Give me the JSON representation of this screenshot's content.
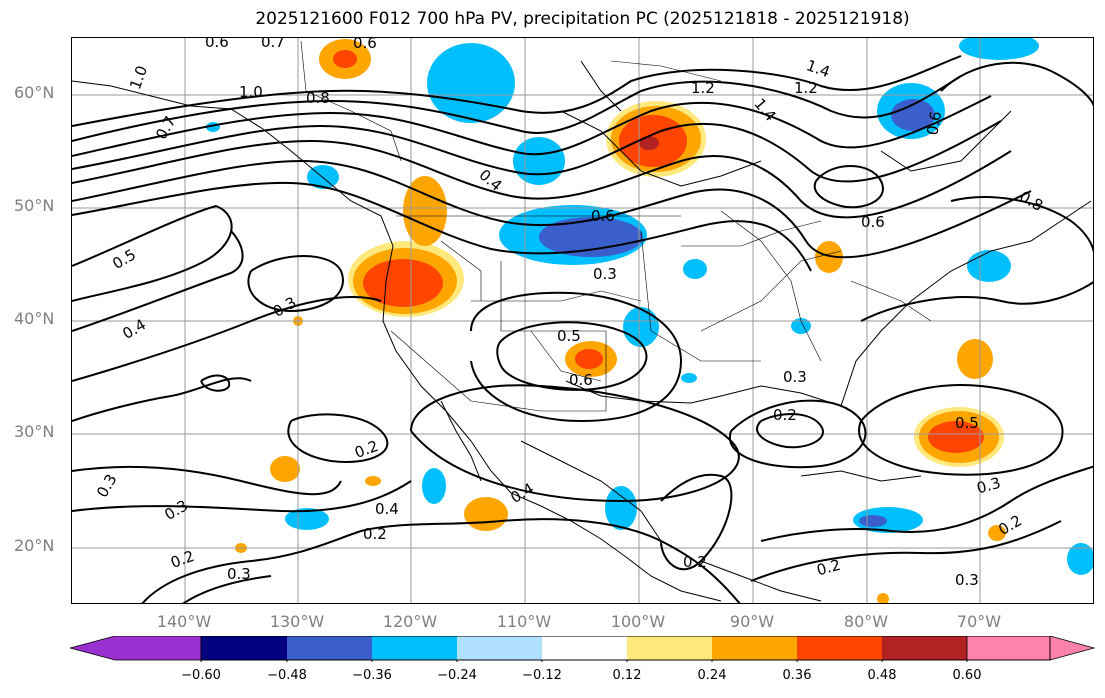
{
  "title": "2025121600 F012 700 hPa PV, precipitation PC (2025121818 - 2025121918)",
  "lat_labels": [
    "60°N",
    "50°N",
    "40°N",
    "30°N",
    "20°N"
  ],
  "lon_labels": [
    "140°W",
    "130°W",
    "120°W",
    "110°W",
    "100°W",
    "90°W",
    "80°W",
    "70°W"
  ],
  "colorbar": {
    "ticks": [
      "−0.60",
      "−0.48",
      "−0.36",
      "−0.24",
      "−0.12",
      "0.12",
      "0.24",
      "0.36",
      "0.48",
      "0.60"
    ],
    "colors": [
      "#9b30d0",
      "#000080",
      "#3a5fcd",
      "#00bfff",
      "#b0e2ff",
      "#ffffff",
      "#ffe87c",
      "#ffa500",
      "#ff4500",
      "#b22222",
      "#ff82ab"
    ]
  },
  "contour_labels": [
    {
      "id": "c1",
      "text": "0.6"
    },
    {
      "id": "c2",
      "text": "0.7"
    },
    {
      "id": "c3",
      "text": "0.6"
    },
    {
      "id": "c4",
      "text": "1.0"
    },
    {
      "id": "c5",
      "text": "1.0"
    },
    {
      "id": "c6",
      "text": "0.8"
    },
    {
      "id": "c7",
      "text": "0.7"
    },
    {
      "id": "c8",
      "text": "1.2"
    },
    {
      "id": "c9",
      "text": "1.4"
    },
    {
      "id": "c10",
      "text": "1.2"
    },
    {
      "id": "c11",
      "text": "1.4"
    },
    {
      "id": "c12",
      "text": "0.4"
    },
    {
      "id": "c13",
      "text": "0.5"
    },
    {
      "id": "c14",
      "text": "0.6"
    },
    {
      "id": "c15",
      "text": "0.3"
    },
    {
      "id": "c16",
      "text": "0.6"
    },
    {
      "id": "c17",
      "text": "0.3"
    },
    {
      "id": "c18",
      "text": "0.4"
    },
    {
      "id": "c19",
      "text": "0.5"
    },
    {
      "id": "c20",
      "text": "0.6"
    },
    {
      "id": "c21",
      "text": "0.3"
    },
    {
      "id": "c22",
      "text": "0.2"
    },
    {
      "id": "c23",
      "text": "0.5"
    },
    {
      "id": "c24",
      "text": "0.3"
    },
    {
      "id": "c25",
      "text": "0.2"
    },
    {
      "id": "c26",
      "text": "0.4"
    },
    {
      "id": "c27",
      "text": "0.2"
    },
    {
      "id": "c28",
      "text": "0.3"
    },
    {
      "id": "c29",
      "text": "0.3"
    },
    {
      "id": "c30",
      "text": "0.2"
    },
    {
      "id": "c31",
      "text": "0.3"
    },
    {
      "id": "c32",
      "text": "0.2"
    },
    {
      "id": "c33",
      "text": "0.2"
    },
    {
      "id": "c34",
      "text": "0.3"
    },
    {
      "id": "c35",
      "text": "0.2"
    },
    {
      "id": "c36",
      "text": "0.4"
    },
    {
      "id": "c37",
      "text": "0.8"
    },
    {
      "id": "c38",
      "text": "0.6"
    }
  ]
}
